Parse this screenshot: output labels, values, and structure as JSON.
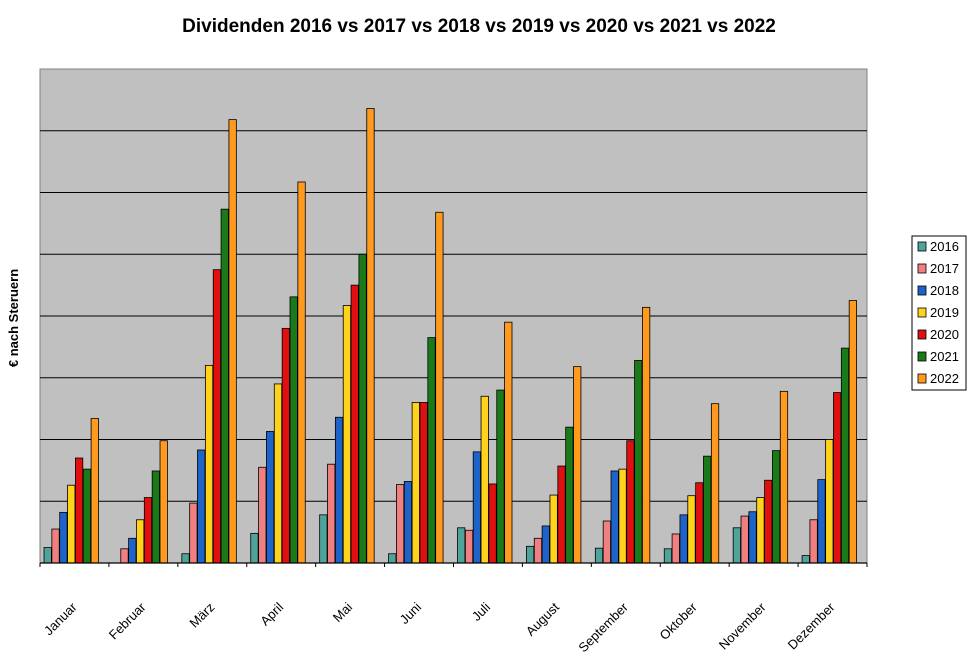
{
  "chart_data": {
    "type": "bar",
    "title": "Dividenden 2016 vs 2017 vs 2018 vs 2019 vs 2020 vs 2021 vs 2022",
    "ylabel": "€ nach Steruern",
    "xlabel": "",
    "ylim": [
      0,
      8
    ],
    "grid": true,
    "legend_position": "right",
    "plot_background": "#c0c0c0",
    "categories": [
      "Januar",
      "Februar",
      "März",
      "April",
      "Mai",
      "Juni",
      "Juli",
      "August",
      "September",
      "Oktober",
      "November",
      "Dezember"
    ],
    "series": [
      {
        "name": "2016",
        "color": "#4fa39a",
        "values": [
          0.25,
          0.0,
          0.15,
          0.48,
          0.78,
          0.15,
          0.57,
          0.27,
          0.24,
          0.23,
          0.57,
          0.12
        ]
      },
      {
        "name": "2017",
        "color": "#f08080",
        "values": [
          0.55,
          0.23,
          0.97,
          1.55,
          1.6,
          1.27,
          0.53,
          0.4,
          0.68,
          0.47,
          0.76,
          0.7
        ]
      },
      {
        "name": "2018",
        "color": "#1e64c8",
        "values": [
          0.82,
          0.4,
          1.83,
          2.13,
          2.36,
          1.32,
          1.8,
          0.6,
          1.49,
          0.78,
          0.83,
          1.35
        ]
      },
      {
        "name": "2019",
        "color": "#ffd21e",
        "values": [
          1.26,
          0.7,
          3.2,
          2.9,
          4.17,
          2.6,
          2.7,
          1.1,
          1.52,
          1.09,
          1.06,
          2.0
        ]
      },
      {
        "name": "2020",
        "color": "#e01010",
        "values": [
          1.7,
          1.06,
          4.75,
          3.8,
          4.5,
          2.6,
          1.28,
          1.57,
          1.98,
          1.3,
          1.34,
          2.76
        ]
      },
      {
        "name": "2021",
        "color": "#1a7a1a",
        "values": [
          1.52,
          1.49,
          5.73,
          4.31,
          5.0,
          3.65,
          2.8,
          2.2,
          3.28,
          1.73,
          1.82,
          3.48
        ]
      },
      {
        "name": "2022",
        "color": "#ff9a1e",
        "values": [
          2.34,
          1.98,
          7.18,
          6.17,
          7.36,
          5.68,
          3.9,
          3.18,
          4.14,
          2.58,
          2.78,
          4.25
        ]
      }
    ]
  }
}
